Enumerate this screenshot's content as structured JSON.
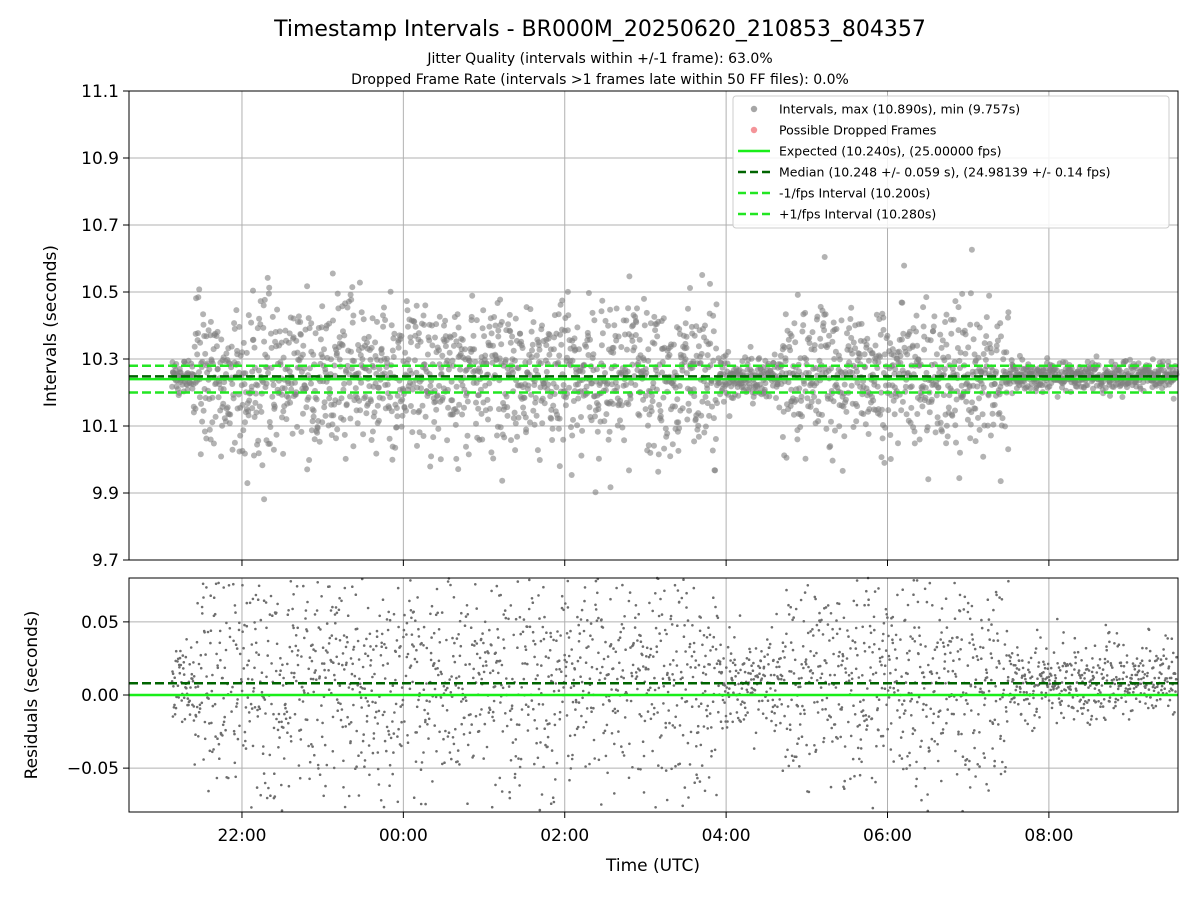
{
  "chart_data": [
    {
      "type": "scatter",
      "title": "Timestamp Intervals - BR000M_20250620_210853_804357",
      "subtitle_lines": [
        "Jitter Quality (intervals within +/-1 frame): 63.0%",
        "Dropped Frame Rate (intervals >1 frames late within 50 FF files): 0.0%"
      ],
      "ylabel": "Intervals (seconds)",
      "ylim": [
        9.7,
        11.1
      ],
      "yticks": [
        9.7,
        9.9,
        10.1,
        10.3,
        10.5,
        10.7,
        10.9,
        11.1
      ],
      "ytick_labels": [
        "9.7",
        "9.9",
        "10.1",
        "10.3",
        "10.5",
        "10.7",
        "10.9",
        "11.1"
      ],
      "grid": true,
      "legend_position": "top-right",
      "series": [
        {
          "name": "Intervals, max (10.890s), min (9.757s)",
          "kind": "scatter",
          "color": "#808080",
          "max": 10.89,
          "min": 9.757,
          "data_start": "21:08",
          "data_end": "09:35"
        },
        {
          "name": "Possible Dropped Frames",
          "kind": "scatter",
          "color": "#f0666d",
          "count": 0
        },
        {
          "name": "Expected (10.240s), (25.00000 fps)",
          "kind": "hline",
          "value": 10.24,
          "color": "#19ee19",
          "style": "solid"
        },
        {
          "name": "Median (10.248 +/- 0.059 s), (24.98139 +/- 0.14 fps)",
          "kind": "hline",
          "value": 10.248,
          "color": "#006400",
          "style": "dashed"
        },
        {
          "name": "-1/fps Interval (10.200s)",
          "kind": "hline",
          "value": 10.2,
          "color": "#22e622",
          "style": "dashed"
        },
        {
          "name": "+1/fps Interval (10.280s)",
          "kind": "hline",
          "value": 10.28,
          "color": "#22e622",
          "style": "dashed"
        }
      ]
    },
    {
      "type": "scatter",
      "xlabel": "Time (UTC)",
      "ylabel": "Residuals (seconds)",
      "ylim": [
        -0.08,
        0.08
      ],
      "yticks": [
        -0.05,
        0.0,
        0.05
      ],
      "ytick_labels": [
        "−0.05",
        "0.00",
        "0.05"
      ],
      "xlim": [
        "20:36",
        "09:36"
      ],
      "xticks": [
        "22:00",
        "00:00",
        "02:00",
        "04:00",
        "06:00",
        "08:00"
      ],
      "grid": true,
      "series": [
        {
          "kind": "scatter",
          "color": "#6e6e6e"
        },
        {
          "kind": "hline",
          "value": 0.0,
          "color": "#19ee19",
          "style": "solid"
        },
        {
          "kind": "hline",
          "value": 0.008,
          "color": "#006400",
          "style": "dashed"
        }
      ]
    }
  ]
}
